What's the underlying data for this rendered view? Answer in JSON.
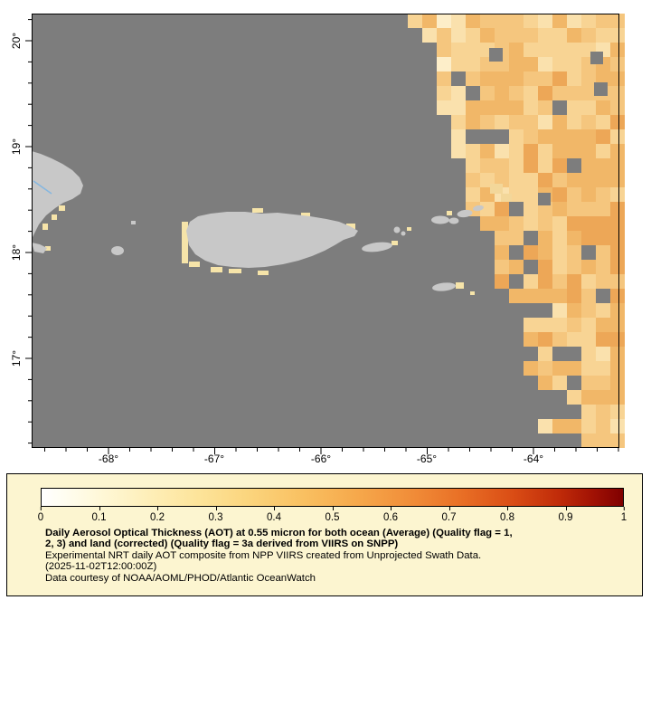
{
  "figure": {
    "map": {
      "y_axis": {
        "labels": [
          "20°",
          "19°",
          "18°",
          "17°"
        ]
      },
      "x_axis": {
        "labels": [
          "-68°",
          "-67°",
          "-66°",
          "-65°",
          "-64°"
        ]
      }
    },
    "legend": {
      "ticks": [
        "0",
        "0.1",
        "0.2",
        "0.3",
        "0.4",
        "0.5",
        "0.6",
        "0.7",
        "0.8",
        "0.9",
        "1"
      ],
      "caption_bold_1": "Daily Aerosol Optical Thickness (AOT) at 0.55 micron for both ocean (Average) (Quality flag = 1,",
      "caption_bold_2": "2, 3) and land (corrected) (Quality flag = 3a derived from VIIRS on SNPP)",
      "caption_line_3": "Experimental NRT daily AOT composite from NPP VIIRS created from Unprojected Swath Data.",
      "caption_line_4": "(2025-11-02T12:00:00Z)",
      "caption_line_5": "Data courtesy of NOAA/AOML/PHOD/Atlantic OceanWatch"
    }
  },
  "chart_data": {
    "type": "heatmap",
    "title": "Daily Aerosol Optical Thickness (AOT) at 0.55 micron for both ocean (Average) (Quality flag = 1, 2, 3) and land (corrected) (Quality flag = 3a derived from VIIRS on SNPP)",
    "subtitle": "Experimental NRT daily AOT composite from NPP VIIRS created from Unprojected Swath Data. (2025-11-02T12:00:00Z)",
    "credit": "Data courtesy of NOAA/AOML/PHOD/Atlantic OceanWatch",
    "x_tick_labels": [
      "-68°",
      "-67°",
      "-66°",
      "-65°",
      "-64°"
    ],
    "y_tick_labels": [
      "20°",
      "19°",
      "18°",
      "17°"
    ],
    "xlim": [
      -68.72,
      -63.19
    ],
    "ylim": [
      16.15,
      20.26
    ],
    "grid": false,
    "legend_position": "bottom",
    "colorbar": {
      "min": 0,
      "max": 1,
      "label_ticks": [
        0,
        0.1,
        0.2,
        0.3,
        0.4,
        0.5,
        0.6,
        0.7,
        0.8,
        0.9,
        1
      ],
      "gradient": [
        "#ffffff",
        "#fff8d6",
        "#fdecb0",
        "#fcdc88",
        "#fac364",
        "#f7a74b",
        "#f28735",
        "#e66120",
        "#d23a10",
        "#ae1505",
        "#800000"
      ]
    },
    "observed": {
      "no_data_color": "#7d7d7d",
      "land_color": "#c8c8c8",
      "aot_swath": "Blocky AOT field of approx. 0.1-0.4 covering the eastern part of the map, from about 64.6W at the top sloping to about 63.7W at the bottom, with a few gray no-data holes",
      "coastal_values": "Scattered AOT ~0.1-0.2 pixels along the coasts of Puerto Rico, eastern Hispaniola, Vieques, the Virgin Islands and St. Croix"
    },
    "palette_field": [
      "#fdeec9",
      "#fae1ad",
      "#f8d494",
      "#f5c67e",
      "#f1b768",
      "#eda757",
      "#e89a4b"
    ]
  }
}
